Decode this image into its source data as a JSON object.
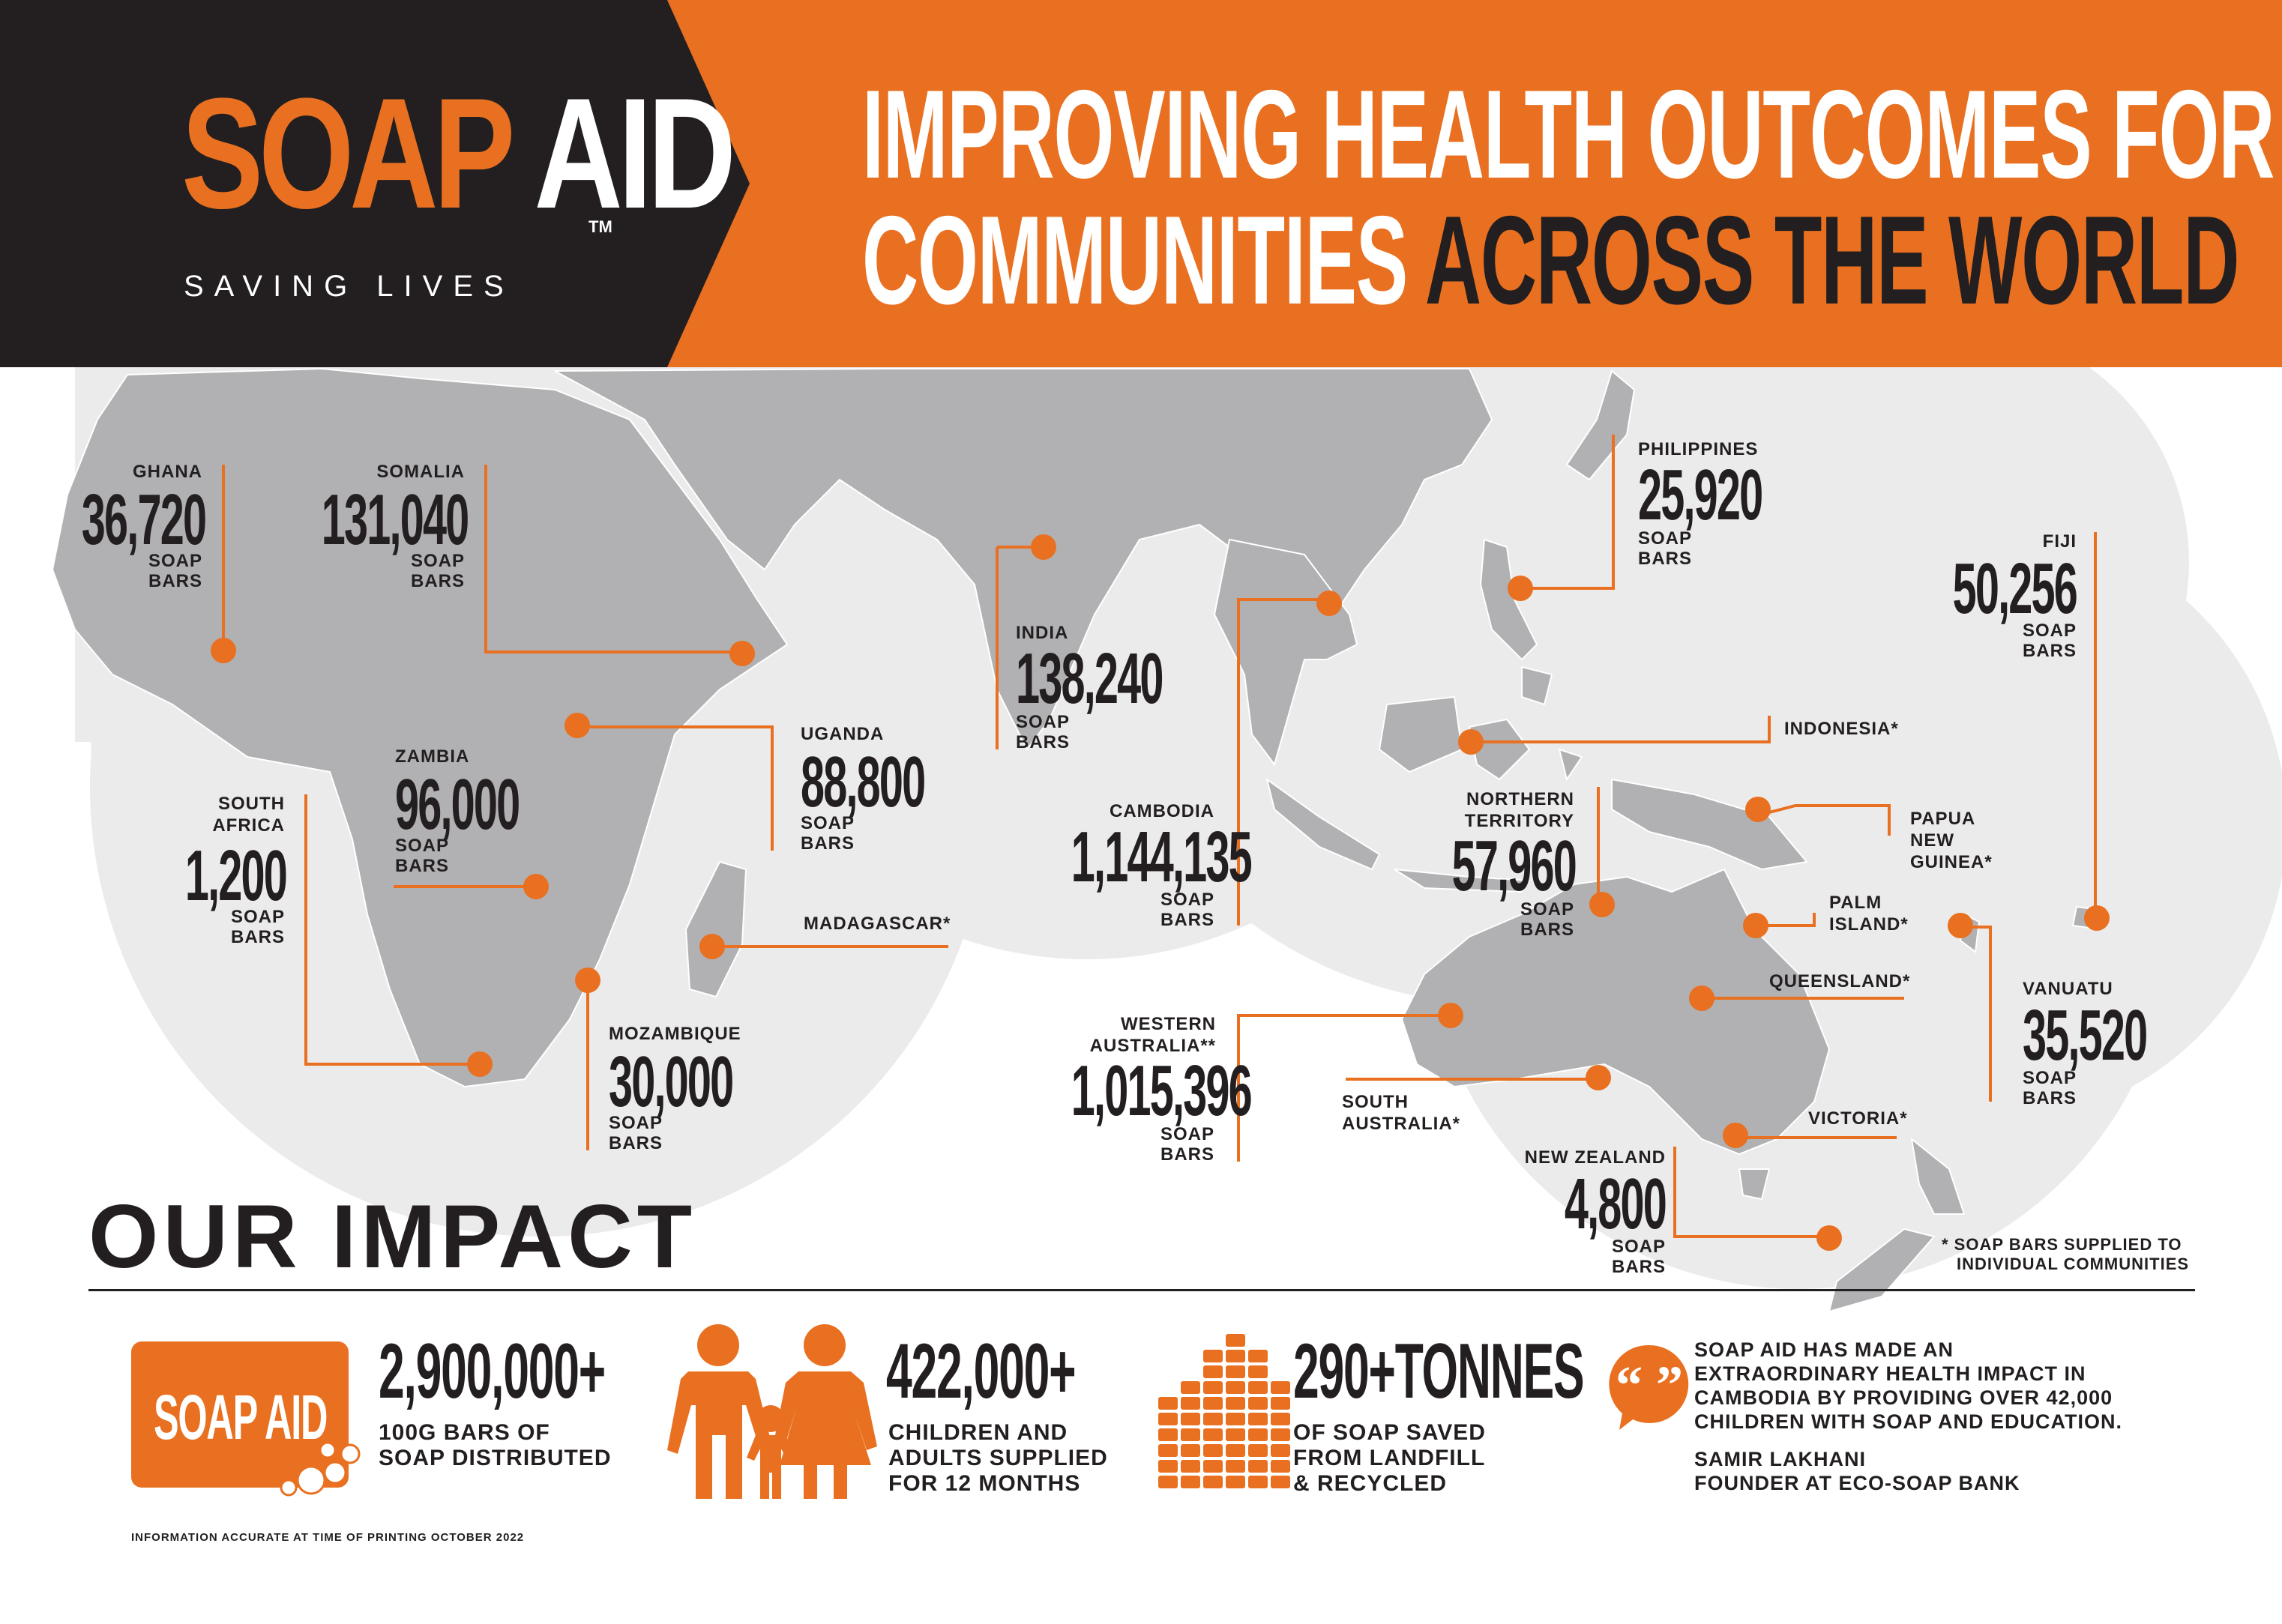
{
  "brand": {
    "soap": "SOAP",
    "aid": "AID",
    "tm": "TM",
    "tagline": "SAVING LIVES"
  },
  "headline": {
    "line1": "IMPROVING HEALTH OUTCOMES FOR",
    "line2_light": "COMMUNITIES",
    "line2_dark": "ACROSS THE WORLD"
  },
  "colors": {
    "accent": "#e87020",
    "dark": "#231f20",
    "land": "#b1b1b3",
    "halo": "#ebebeb"
  },
  "map": {
    "soap_bars_label": "SOAP",
    "bars_label": "BARS",
    "countries": [
      {
        "id": "ghana",
        "name": "GHANA",
        "value": "36,720"
      },
      {
        "id": "somalia",
        "name": "SOMALIA",
        "value": "131,040"
      },
      {
        "id": "zambia",
        "name": "ZAMBIA",
        "value": "96,000"
      },
      {
        "id": "south-africa",
        "name1": "SOUTH",
        "name2": "AFRICA",
        "value": "1,200"
      },
      {
        "id": "uganda",
        "name": "UGANDA",
        "value": "88,800"
      },
      {
        "id": "madagascar",
        "name": "MADAGASCAR*"
      },
      {
        "id": "mozambique",
        "name": "MOZAMBIQUE",
        "value": "30,000"
      },
      {
        "id": "india",
        "name": "INDIA",
        "value": "138,240"
      },
      {
        "id": "cambodia",
        "name": "CAMBODIA",
        "value": "1,144,135"
      },
      {
        "id": "western-australia",
        "name1": "WESTERN",
        "name2": "AUSTRALIA**",
        "value": "1,015,396"
      },
      {
        "id": "philippines",
        "name": "PHILIPPINES",
        "value": "25,920"
      },
      {
        "id": "indonesia",
        "name": "INDONESIA*"
      },
      {
        "id": "northern-territory",
        "name1": "NORTHERN",
        "name2": "TERRITORY",
        "value": "57,960"
      },
      {
        "id": "papua-new-guinea",
        "name1": "PAPUA",
        "name2": "NEW",
        "name3": "GUINEA*"
      },
      {
        "id": "palm-island",
        "name1": "PALM",
        "name2": "ISLAND*"
      },
      {
        "id": "queensland",
        "name": "QUEENSLAND*"
      },
      {
        "id": "south-australia",
        "name1": "SOUTH",
        "name2": "AUSTRALIA*"
      },
      {
        "id": "victoria",
        "name": "VICTORIA*"
      },
      {
        "id": "new-zealand",
        "name": "NEW ZEALAND",
        "value": "4,800"
      },
      {
        "id": "fiji",
        "name": "FIJI",
        "value": "50,256"
      },
      {
        "id": "vanuatu",
        "name": "VANUATU",
        "value": "35,520"
      }
    ],
    "footnote_line1": "* SOAP BARS SUPPLIED TO",
    "footnote_line2": "INDIVIDUAL COMMUNITIES"
  },
  "impact": {
    "title": "OUR IMPACT",
    "stats": [
      {
        "icon": "soap-aid-bar-icon",
        "icon_text": "SOAP AID",
        "big": "2,900,000+",
        "line1": "100G BARS OF",
        "line2": "SOAP DISTRIBUTED"
      },
      {
        "icon": "family-icon",
        "big": "422,000+",
        "line1": "CHILDREN AND",
        "line2": "ADULTS SUPPLIED",
        "line3": "FOR 12 MONTHS"
      },
      {
        "icon": "stacked-soap-icon",
        "big": "290+TONNES",
        "line1": "OF SOAP SAVED",
        "line2": "FROM LANDFILL",
        "line3": "& RECYCLED"
      }
    ],
    "quote": {
      "line1": "SOAP AID HAS MADE AN",
      "line2": "EXTRAORDINARY HEALTH IMPACT IN",
      "line3": "CAMBODIA BY PROVIDING OVER 42,000",
      "line4": "CHILDREN WITH SOAP AND EDUCATION.",
      "author": "SAMIR LAKHANI",
      "role": "FOUNDER AT ECO-SOAP BANK"
    },
    "note": "INFORMATION ACCURATE AT TIME OF PRINTING OCTOBER 2022"
  }
}
